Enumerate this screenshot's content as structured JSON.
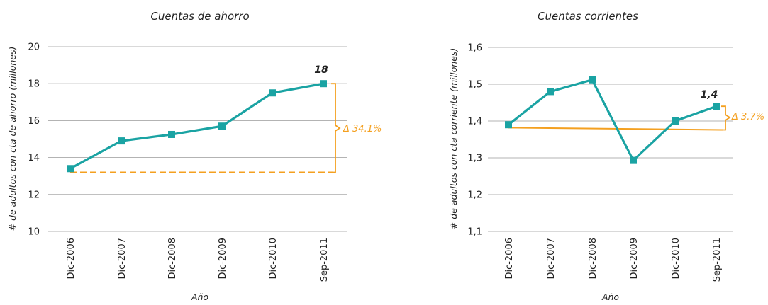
{
  "colors": {
    "series": "#1aa3a3",
    "delta": "#f4a020",
    "grid": "#9a9a9a",
    "text": "#222222"
  },
  "chart_data": [
    {
      "type": "line",
      "title": "Cuentas de ahorro",
      "xlabel": "Año",
      "ylabel": "# de adultos con cta de ahorro (millones)",
      "categories": [
        "Dic-2006",
        "Dic-2007",
        "Dic-2008",
        "Dic-2009",
        "Dic-2010",
        "Sep-2011"
      ],
      "series": [
        {
          "values": [
            13.4,
            14.9,
            15.25,
            15.7,
            17.5,
            18.0
          ]
        }
      ],
      "yticks": [
        "10",
        "12",
        "14",
        "16",
        "18",
        "20"
      ],
      "ylim": [
        10,
        20
      ],
      "grid": true,
      "data_label": "18",
      "delta_label": "Δ 34.1%",
      "baseline_value": 13.2,
      "baseline_style": "dashed"
    },
    {
      "type": "line",
      "title": "Cuentas corrientes",
      "xlabel": "Año",
      "ylabel": "# de adultos con cta corriente (millones)",
      "categories": [
        "Dic-2006",
        "Dic-2007",
        "Dic-2008",
        "Dic-2009",
        "Dic-2010",
        "Sep-2011"
      ],
      "series": [
        {
          "values": [
            1.39,
            1.48,
            1.512,
            1.293,
            1.4,
            1.44
          ]
        }
      ],
      "yticks": [
        "1,1",
        "1,2",
        "1,3",
        "1,4",
        "1,5",
        "1,6"
      ],
      "ylim": [
        1.1,
        1.6
      ],
      "grid": true,
      "data_label": "1,4",
      "delta_label": "Δ 3.7%",
      "baseline_start": 1.382,
      "baseline_end": 1.376,
      "baseline_style": "solid"
    }
  ]
}
